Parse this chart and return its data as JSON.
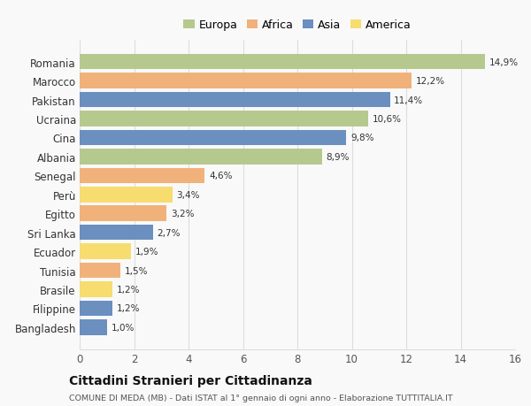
{
  "countries": [
    "Romania",
    "Marocco",
    "Pakistan",
    "Ucraina",
    "Cina",
    "Albania",
    "Senegal",
    "Perù",
    "Egitto",
    "Sri Lanka",
    "Ecuador",
    "Tunisia",
    "Brasile",
    "Filippine",
    "Bangladesh"
  ],
  "values": [
    14.9,
    12.2,
    11.4,
    10.6,
    9.8,
    8.9,
    4.6,
    3.4,
    3.2,
    2.7,
    1.9,
    1.5,
    1.2,
    1.2,
    1.0
  ],
  "continents": [
    "Europa",
    "Africa",
    "Asia",
    "Europa",
    "Asia",
    "Europa",
    "Africa",
    "America",
    "Africa",
    "Asia",
    "America",
    "Africa",
    "America",
    "Asia",
    "Asia"
  ],
  "colors": {
    "Europa": "#b5c98e",
    "Africa": "#f0b27a",
    "Asia": "#6b8fbf",
    "America": "#f7dc6f"
  },
  "xlim": [
    0,
    16
  ],
  "xticks": [
    0,
    2,
    4,
    6,
    8,
    10,
    12,
    14,
    16
  ],
  "title": "Cittadini Stranieri per Cittadinanza",
  "subtitle": "COMUNE DI MEDA (MB) - Dati ISTAT al 1° gennaio di ogni anno - Elaborazione TUTTITALIA.IT",
  "background_color": "#f9f9f9",
  "bar_height": 0.82,
  "grid_color": "#dddddd",
  "legend_order": [
    "Europa",
    "Africa",
    "Asia",
    "America"
  ]
}
